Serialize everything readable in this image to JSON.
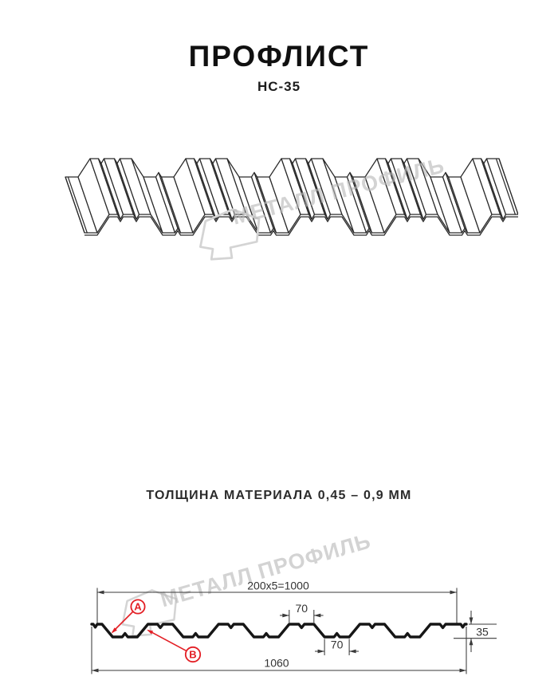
{
  "header": {
    "title": "ПРОФЛИСТ",
    "subtitle": "НС-35"
  },
  "watermark": {
    "brand": "МЕТАЛЛ ПРОФИЛЬ"
  },
  "section": {
    "dim_modules": "200x5=1000",
    "dim_rib_top": "70",
    "dim_rib_bottom": "70",
    "dim_total_width": "1060",
    "dim_height": "35",
    "label_a": "A",
    "label_b": "B"
  },
  "footer": {
    "text": "ТОЛЩИНА МАТЕРИАЛА 0,45 – 0,9 ММ"
  },
  "colors": {
    "accent_red": "#e31e24",
    "line": "#2a2a2a",
    "watermark": "#b9b9b9"
  }
}
